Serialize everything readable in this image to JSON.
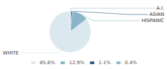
{
  "chart_data": {
    "type": "pie",
    "categories": [
      "WHITE",
      "HISPANIC",
      "ASIAN",
      "A.I."
    ],
    "values": [
      85.6,
      12.9,
      1.1,
      0.4
    ],
    "value_labels": [
      "85.6%",
      "12.9%",
      "1.1%",
      "0.4%"
    ],
    "colors": [
      "#dce8f0",
      "#8ab4c8",
      "#2a5a80",
      "#9ab8c8"
    ],
    "legend": "bottom"
  }
}
